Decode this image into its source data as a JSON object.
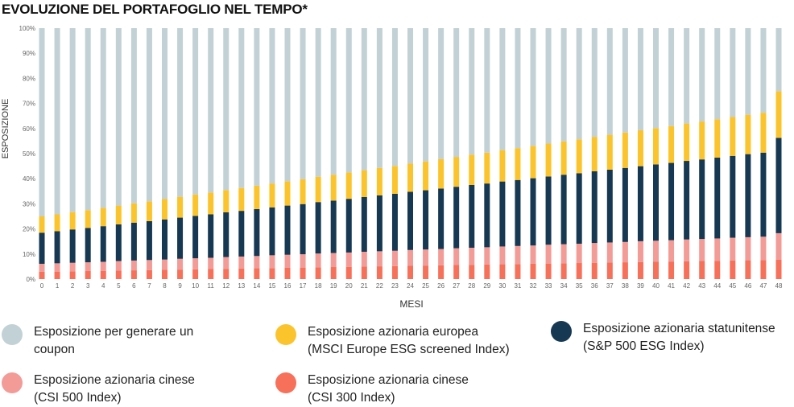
{
  "title": "EVOLUZIONE DEL PORTAFOGLIO NEL TEMPO*",
  "chart_data": {
    "type": "bar",
    "stacked": true,
    "xlabel": "MESI",
    "ylabel": "ESPOSIZIONE",
    "ylim": [
      0,
      100
    ],
    "yticks": [
      "0%",
      "10%",
      "20%",
      "30%",
      "40%",
      "50%",
      "60%",
      "70%",
      "80%",
      "90%",
      "100%"
    ],
    "categories": [
      "0",
      "1",
      "2",
      "3",
      "4",
      "5",
      "6",
      "7",
      "8",
      "9",
      "10",
      "11",
      "12",
      "13",
      "14",
      "15",
      "16",
      "17",
      "18",
      "19",
      "20",
      "21",
      "22",
      "23",
      "24",
      "25",
      "26",
      "27",
      "28",
      "29",
      "30",
      "31",
      "32",
      "33",
      "34",
      "35",
      "36",
      "37",
      "38",
      "39",
      "40",
      "41",
      "42",
      "43",
      "44",
      "45",
      "46",
      "47",
      "48"
    ],
    "series": [
      {
        "name": "Esposizione azionaria cinese (CSI 300 Index)",
        "color": "#f7705a",
        "values": [
          2.9,
          3.0,
          3.1,
          3.2,
          3.3,
          3.4,
          3.5,
          3.6,
          3.7,
          3.8,
          3.9,
          4.0,
          4.1,
          4.2,
          4.3,
          4.4,
          4.5,
          4.6,
          4.7,
          4.8,
          4.9,
          5.0,
          5.1,
          5.2,
          5.3,
          5.4,
          5.5,
          5.6,
          5.7,
          5.8,
          5.9,
          6.0,
          6.1,
          6.2,
          6.3,
          6.4,
          6.5,
          6.6,
          6.7,
          6.8,
          6.9,
          7.0,
          7.1,
          7.2,
          7.3,
          7.4,
          7.5,
          7.6,
          7.7
        ]
      },
      {
        "name": "Esposizione azionaria cinese (CSI 500 Index)",
        "color": "#f29b97",
        "values": [
          3.2,
          3.3,
          3.4,
          3.5,
          3.6,
          3.8,
          3.9,
          4.0,
          4.1,
          4.3,
          4.4,
          4.5,
          4.7,
          4.8,
          4.9,
          5.1,
          5.2,
          5.3,
          5.5,
          5.6,
          5.7,
          5.9,
          6.0,
          6.1,
          6.3,
          6.4,
          6.5,
          6.7,
          6.8,
          6.9,
          7.1,
          7.2,
          7.3,
          7.5,
          7.6,
          7.7,
          7.9,
          8.0,
          8.1,
          8.3,
          8.4,
          8.5,
          8.7,
          8.8,
          8.9,
          9.1,
          9.2,
          9.3,
          10.6
        ]
      },
      {
        "name": "Esposizione azionaria statunitense (S&P 500 ESG Index)",
        "color": "#163852",
        "values": [
          12.4,
          12.8,
          13.3,
          13.7,
          14.2,
          14.6,
          15.1,
          15.5,
          16.0,
          16.4,
          16.9,
          17.3,
          17.8,
          18.2,
          18.7,
          19.1,
          19.6,
          20.0,
          20.5,
          20.9,
          21.4,
          21.8,
          22.3,
          22.7,
          23.2,
          23.6,
          24.1,
          24.5,
          25.0,
          25.4,
          25.9,
          26.3,
          26.8,
          27.2,
          27.7,
          28.1,
          28.6,
          29.0,
          29.5,
          29.9,
          30.4,
          30.8,
          31.3,
          31.7,
          32.2,
          32.6,
          33.1,
          33.5,
          38.0
        ]
      },
      {
        "name": "Esposizione azionaria europea (MSCI Europe ESG screened Index)",
        "color": "#fcc42c",
        "values": [
          6.5,
          6.7,
          6.9,
          7.1,
          7.3,
          7.5,
          7.7,
          7.9,
          8.1,
          8.3,
          8.5,
          8.7,
          8.9,
          9.1,
          9.3,
          9.5,
          9.7,
          9.9,
          10.1,
          10.3,
          10.5,
          10.7,
          10.9,
          11.1,
          11.3,
          11.5,
          11.7,
          11.9,
          12.1,
          12.3,
          12.5,
          12.7,
          12.9,
          13.1,
          13.3,
          13.5,
          13.7,
          13.9,
          14.1,
          14.3,
          14.5,
          14.7,
          14.9,
          15.1,
          15.3,
          15.5,
          15.7,
          15.9,
          18.6
        ]
      },
      {
        "name": "Esposizione per generare un coupon",
        "color": "#c2d1d5",
        "values": [
          75.0,
          74.2,
          73.3,
          72.5,
          71.6,
          70.7,
          69.8,
          69.0,
          68.1,
          67.2,
          66.3,
          65.5,
          64.5,
          63.7,
          62.8,
          61.9,
          61.0,
          60.2,
          59.2,
          58.4,
          57.5,
          56.6,
          55.7,
          54.9,
          53.9,
          53.1,
          52.2,
          51.3,
          50.4,
          49.6,
          48.6,
          47.8,
          46.9,
          46.0,
          45.1,
          44.3,
          43.3,
          42.5,
          41.6,
          40.7,
          39.8,
          39.0,
          38.0,
          37.2,
          36.3,
          35.4,
          34.5,
          33.7,
          25.1
        ]
      }
    ]
  },
  "legend": [
    {
      "color": "#c2d1d5",
      "line1": "Esposizione per generare un",
      "line2": "coupon"
    },
    {
      "color": "#fcc42c",
      "line1": "Esposizione azionaria europea",
      "line2": "(MSCI Europe ESG screened Index)"
    },
    {
      "color": "#163852",
      "line1": "Esposizione azionaria statunitense",
      "line2": "(S&P 500 ESG Index)"
    },
    {
      "color": "#f29b97",
      "line1": "Esposizione azionaria cinese",
      "line2": "(CSI 500 Index)"
    },
    {
      "color": "#f7705a",
      "line1": "Esposizione azionaria cinese",
      "line2": "(CSI 300 Index)"
    }
  ]
}
